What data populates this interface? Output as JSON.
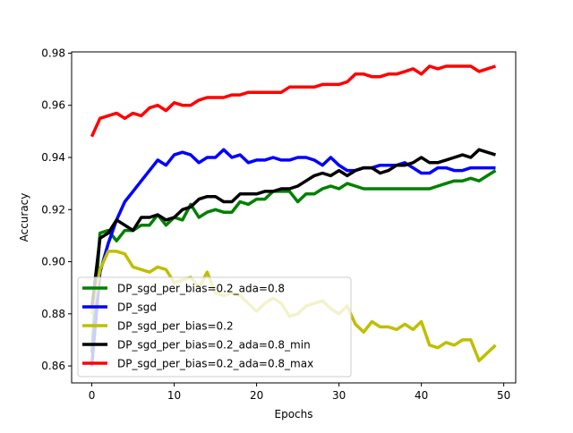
{
  "chart_data": {
    "type": "line",
    "xlabel": "Epochs",
    "ylabel": "Accuracy",
    "xlim": [
      -2.45,
      51.45
    ],
    "ylim": [
      0.8535,
      0.9805
    ],
    "xticks": [
      0,
      10,
      20,
      30,
      40,
      50
    ],
    "yticks": [
      0.86,
      0.88,
      0.9,
      0.92,
      0.94,
      0.96,
      0.98
    ],
    "ytick_labels": [
      "0.86",
      "0.88",
      "0.90",
      "0.92",
      "0.94",
      "0.96",
      "0.98"
    ],
    "legend_position": "lower-left",
    "series": [
      {
        "name": "DP_sgd_per_bias=0.2_ada=0.8",
        "color": "#008000",
        "x": [
          0,
          1,
          2,
          3,
          4,
          5,
          6,
          7,
          8,
          9,
          10,
          11,
          12,
          13,
          14,
          15,
          16,
          17,
          18,
          19,
          20,
          21,
          22,
          23,
          24,
          25,
          26,
          27,
          28,
          29,
          30,
          31,
          32,
          33,
          34,
          35,
          36,
          37,
          38,
          39,
          40,
          41,
          42,
          43,
          44,
          45,
          46,
          47,
          48,
          49
        ],
        "values": [
          0.865,
          0.911,
          0.912,
          0.908,
          0.912,
          0.912,
          0.914,
          0.914,
          0.918,
          0.914,
          0.917,
          0.916,
          0.922,
          0.917,
          0.919,
          0.92,
          0.919,
          0.919,
          0.923,
          0.922,
          0.924,
          0.924,
          0.927,
          0.927,
          0.927,
          0.923,
          0.926,
          0.926,
          0.928,
          0.929,
          0.928,
          0.93,
          0.929,
          0.928,
          0.928,
          0.928,
          0.928,
          0.928,
          0.928,
          0.928,
          0.928,
          0.928,
          0.929,
          0.93,
          0.931,
          0.931,
          0.932,
          0.931,
          0.933,
          0.935
        ]
      },
      {
        "name": "DP_sgd",
        "color": "#0000ff",
        "x": [
          0,
          1,
          2,
          3,
          4,
          5,
          6,
          7,
          8,
          9,
          10,
          11,
          12,
          13,
          14,
          15,
          16,
          17,
          18,
          19,
          20,
          21,
          22,
          23,
          24,
          25,
          26,
          27,
          28,
          29,
          30,
          31,
          32,
          33,
          34,
          35,
          36,
          37,
          38,
          39,
          40,
          41,
          42,
          43,
          44,
          45,
          46,
          47,
          48,
          49
        ],
        "values": [
          0.86,
          0.896,
          0.907,
          0.916,
          0.923,
          0.927,
          0.931,
          0.935,
          0.939,
          0.937,
          0.941,
          0.942,
          0.941,
          0.938,
          0.94,
          0.94,
          0.943,
          0.94,
          0.941,
          0.938,
          0.939,
          0.939,
          0.94,
          0.939,
          0.939,
          0.94,
          0.94,
          0.939,
          0.937,
          0.94,
          0.937,
          0.935,
          0.935,
          0.936,
          0.936,
          0.937,
          0.937,
          0.937,
          0.938,
          0.936,
          0.934,
          0.934,
          0.936,
          0.936,
          0.935,
          0.935,
          0.936,
          0.936,
          0.936,
          0.936
        ]
      },
      {
        "name": "DP_sgd_per_bias=0.2",
        "color": "#bfbf00",
        "x": [
          0,
          1,
          2,
          3,
          4,
          5,
          6,
          7,
          8,
          9,
          10,
          11,
          12,
          13,
          14,
          15,
          16,
          17,
          18,
          19,
          20,
          21,
          22,
          23,
          24,
          25,
          26,
          27,
          28,
          29,
          30,
          31,
          32,
          33,
          34,
          35,
          36,
          37,
          38,
          39,
          40,
          41,
          42,
          43,
          44,
          45,
          46,
          47,
          48,
          49
        ],
        "values": [
          0.88,
          0.897,
          0.904,
          0.904,
          0.903,
          0.898,
          0.897,
          0.896,
          0.898,
          0.897,
          0.892,
          0.893,
          0.894,
          0.89,
          0.896,
          0.888,
          0.887,
          0.888,
          0.887,
          0.884,
          0.881,
          0.884,
          0.886,
          0.884,
          0.879,
          0.88,
          0.883,
          0.884,
          0.885,
          0.882,
          0.88,
          0.883,
          0.876,
          0.873,
          0.877,
          0.875,
          0.875,
          0.874,
          0.876,
          0.874,
          0.877,
          0.868,
          0.867,
          0.869,
          0.868,
          0.87,
          0.87,
          0.862,
          0.865,
          0.868
        ]
      },
      {
        "name": "DP_sgd_per_bias=0.2_ada=0.8_min",
        "color": "#000000",
        "x": [
          0,
          1,
          2,
          3,
          4,
          5,
          6,
          7,
          8,
          9,
          10,
          11,
          12,
          13,
          14,
          15,
          16,
          17,
          18,
          19,
          20,
          21,
          22,
          23,
          24,
          25,
          26,
          27,
          28,
          29,
          30,
          31,
          32,
          33,
          34,
          35,
          36,
          37,
          38,
          39,
          40,
          41,
          42,
          43,
          44,
          45,
          46,
          47,
          48,
          49
        ],
        "values": [
          0.882,
          0.909,
          0.911,
          0.916,
          0.914,
          0.912,
          0.917,
          0.917,
          0.918,
          0.916,
          0.917,
          0.92,
          0.921,
          0.924,
          0.925,
          0.925,
          0.923,
          0.923,
          0.926,
          0.926,
          0.926,
          0.927,
          0.927,
          0.928,
          0.928,
          0.929,
          0.931,
          0.933,
          0.934,
          0.933,
          0.935,
          0.933,
          0.935,
          0.936,
          0.936,
          0.934,
          0.935,
          0.937,
          0.937,
          0.938,
          0.94,
          0.938,
          0.938,
          0.939,
          0.94,
          0.941,
          0.94,
          0.943,
          0.942,
          0.941
        ]
      },
      {
        "name": "DP_sgd_per_bias=0.2_ada=0.8_max",
        "color": "#ff0000",
        "x": [
          0,
          1,
          2,
          3,
          4,
          5,
          6,
          7,
          8,
          9,
          10,
          11,
          12,
          13,
          14,
          15,
          16,
          17,
          18,
          19,
          20,
          21,
          22,
          23,
          24,
          25,
          26,
          27,
          28,
          29,
          30,
          31,
          32,
          33,
          34,
          35,
          36,
          37,
          38,
          39,
          40,
          41,
          42,
          43,
          44,
          45,
          46,
          47,
          48,
          49
        ],
        "values": [
          0.948,
          0.955,
          0.956,
          0.957,
          0.955,
          0.957,
          0.956,
          0.959,
          0.96,
          0.958,
          0.961,
          0.96,
          0.96,
          0.962,
          0.963,
          0.963,
          0.963,
          0.964,
          0.964,
          0.965,
          0.965,
          0.965,
          0.965,
          0.965,
          0.967,
          0.967,
          0.967,
          0.967,
          0.968,
          0.968,
          0.968,
          0.969,
          0.972,
          0.972,
          0.971,
          0.971,
          0.972,
          0.972,
          0.973,
          0.974,
          0.972,
          0.975,
          0.974,
          0.975,
          0.975,
          0.975,
          0.975,
          0.973,
          0.974,
          0.975
        ]
      }
    ]
  }
}
